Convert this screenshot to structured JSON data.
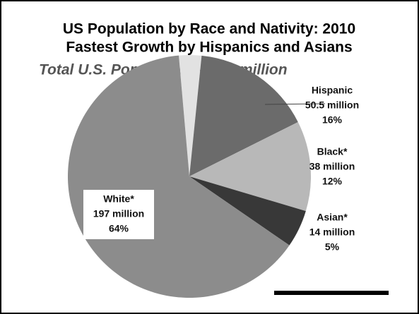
{
  "chart_data": {
    "type": "pie",
    "title": "US Population by Race and Nativity: 2010",
    "subtitle": "Fastest Growth by Hispanics and Asians",
    "annotation": "Total U.S. Population — 309 million",
    "categories": [
      null,
      "Hispanic",
      "Black*",
      "Asian*",
      "White*"
    ],
    "values": [
      3,
      16,
      12,
      5,
      64
    ],
    "value_labels": [
      null,
      "16%",
      "12%",
      "5%",
      "64%"
    ],
    "amounts": [
      null,
      50.5,
      38,
      14,
      197
    ],
    "amount_labels": [
      null,
      "50.5 million",
      "38 million",
      "14 million",
      "197 million"
    ],
    "colors": [
      "#e2e2e2",
      "#6b6b6b",
      "#b8b8b8",
      "#383838",
      "#8c8c8c"
    ]
  }
}
